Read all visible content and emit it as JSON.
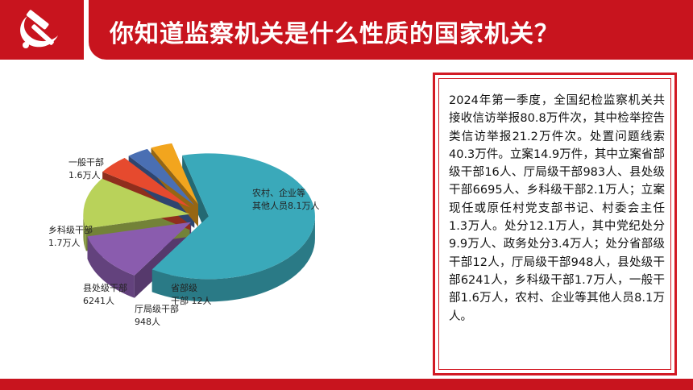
{
  "header": {
    "title": "你知道监察机关是什么性质的国家机关？",
    "logo_icon": "hammer-sickle-icon",
    "colors": {
      "brand_red": "#c8141e",
      "text_white": "#ffffff"
    }
  },
  "chart_data": {
    "type": "pie",
    "style": "3d-exploded",
    "slices": [
      {
        "label_line1": "农村、企业等",
        "label_line2": "其他人员8.1万人",
        "value": 81000,
        "color": "#3aa9ba"
      },
      {
        "label_line1": "一般干部",
        "label_line2": "1.6万人",
        "value": 16000,
        "color": "#8a5cae"
      },
      {
        "label_line1": "乡科级干部",
        "label_line2": "1.7万人",
        "value": 17000,
        "color": "#b9d25a"
      },
      {
        "label_line1": "县处级干部",
        "label_line2": "6241人",
        "value": 6241,
        "color": "#e64a2e"
      },
      {
        "label_line1": "厅局级干部",
        "label_line2": "948人",
        "value": 948,
        "color": "#4a6fb3"
      },
      {
        "label_line1": "省部级",
        "label_line2": "干部 12人",
        "value": 12,
        "color": "#f2a51e"
      }
    ]
  },
  "textbox": {
    "paragraph": "2024年第一季度，全国纪检监察机关共接收信访举报80.8万件次，其中检举控告类信访举报21.2万件次。处置问题线索40.3万件。立案14.9万件，其中立案省部级干部16人、厅局级干部983人、县处级干部6695人、乡科级干部2.1万人；立案现任或原任村党支部书记、村委会主任1.3万人。处分12.1万人，其中党纪处分9.9万人、政务处分3.4万人；处分省部级干部12人，厅局级干部948人，县处级干部6241人，乡科级干部1.7万人，一般干部1.6万人，农村、企业等其他人员8.1万人。"
  }
}
